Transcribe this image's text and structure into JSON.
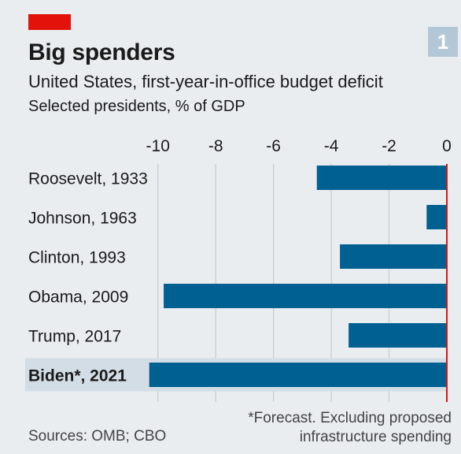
{
  "header": {
    "badge": "1",
    "title": "Big spenders",
    "subtitle": "United States, first-year-in-office budget deficit",
    "units": "Selected presidents, % of GDP"
  },
  "colors": {
    "accent": "#e3120b",
    "bar": "#006092",
    "highlight_band": "#d3dde5",
    "background": "#e9edf0",
    "zero_line": "#e3120b"
  },
  "chart_data": {
    "type": "bar",
    "orientation": "horizontal",
    "categories": [
      "Roosevelt, 1933",
      "Johnson, 1963",
      "Clinton, 1993",
      "Obama, 2009",
      "Trump, 2017",
      "Biden*, 2021"
    ],
    "values": [
      -4.5,
      -0.7,
      -3.7,
      -9.8,
      -3.4,
      -10.3
    ],
    "highlight": "Biden*, 2021",
    "xlim": [
      -11,
      0
    ],
    "ticks": [
      -10,
      -8,
      -6,
      -4,
      -2,
      0
    ],
    "tick_labels": [
      "-10",
      "-8",
      "-6",
      "-4",
      "-2",
      "0"
    ],
    "axis_position": "top",
    "grid": true
  },
  "footer": {
    "footnote_lines": [
      "*Forecast. Excluding proposed",
      "infrastructure spending"
    ],
    "sources": "Sources: OMB; CBO"
  }
}
